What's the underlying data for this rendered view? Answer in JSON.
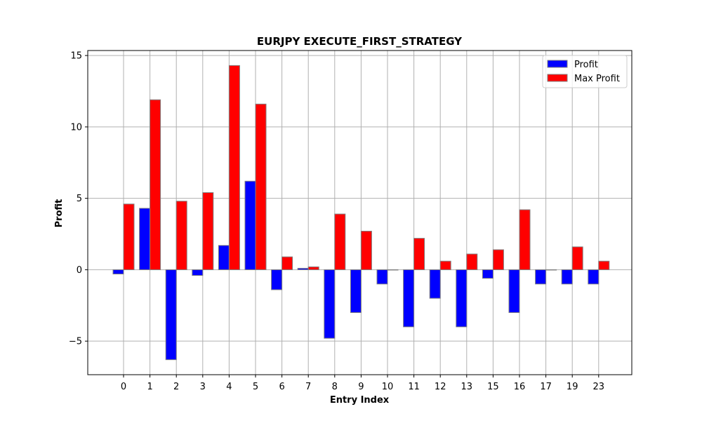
{
  "chart_data": {
    "type": "bar",
    "title": "EURJPY EXECUTE_FIRST_STRATEGY",
    "xlabel": "Entry Index",
    "ylabel": "Profit",
    "categories": [
      "0",
      "1",
      "2",
      "3",
      "4",
      "5",
      "6",
      "7",
      "8",
      "9",
      "10",
      "11",
      "12",
      "13",
      "15",
      "16",
      "17",
      "19",
      "23"
    ],
    "series": [
      {
        "name": "Profit",
        "color": "#0000ff",
        "values": [
          -0.3,
          4.3,
          -6.3,
          -0.4,
          1.7,
          6.2,
          -1.4,
          0.1,
          -4.8,
          -3.0,
          -1.0,
          -4.0,
          -2.0,
          -4.0,
          -0.6,
          -3.0,
          -1.0,
          -1.0,
          -1.0
        ]
      },
      {
        "name": "Max Profit",
        "color": "#ff0000",
        "values": [
          4.6,
          11.9,
          4.8,
          5.4,
          14.3,
          11.6,
          0.9,
          0.2,
          3.9,
          2.7,
          0.0,
          2.2,
          0.6,
          1.1,
          1.4,
          4.2,
          0.0,
          1.6,
          0.6
        ]
      }
    ],
    "ylim": [
      -7.35,
      15.35
    ],
    "yticks": [
      -5,
      0,
      5,
      10,
      15
    ],
    "ytick_labels": [
      "−5",
      "0",
      "5",
      "10",
      "15"
    ],
    "grid": true,
    "legend_position": "upper right",
    "bar_edge_color": "#808080"
  }
}
